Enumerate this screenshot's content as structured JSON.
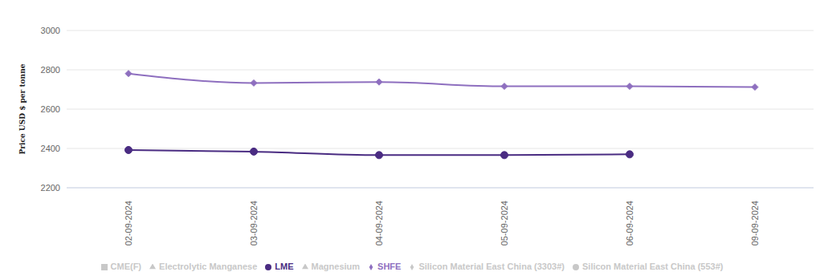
{
  "chart_data": {
    "type": "line",
    "y_label": "Price USD $ per tonne",
    "categories": [
      "02-09-2024",
      "03-09-2024",
      "04-09-2024",
      "05-09-2024",
      "06-09-2024",
      "09-09-2024"
    ],
    "series": [
      {
        "name": "LME",
        "color": "#4a2c82",
        "marker": "circle",
        "values": [
          2392,
          2384,
          2366,
          2366,
          2370,
          null
        ]
      },
      {
        "name": "SHFE",
        "color": "#8e6fbf",
        "marker": "diamond",
        "values": [
          2781,
          2733,
          2738,
          2716,
          2716,
          2712
        ]
      },
      {
        "name": "CME(F)",
        "color": "#c8c8c8",
        "marker": "square",
        "values": [
          null,
          null,
          null,
          null,
          null,
          null
        ]
      },
      {
        "name": "Electrolytic Manganese",
        "color": "#c8c8c8",
        "marker": "triangle",
        "values": [
          null,
          null,
          null,
          null,
          null,
          null
        ]
      },
      {
        "name": "Magnesium",
        "color": "#c8c8c8",
        "marker": "triangle-down",
        "values": [
          null,
          null,
          null,
          null,
          null,
          null
        ]
      },
      {
        "name": "Silicon Material East China (553#)",
        "color": "#c8c8c8",
        "marker": "circle",
        "values": [
          null,
          null,
          null,
          null,
          null,
          null
        ]
      },
      {
        "name": "Silicon Material East China (3303#)",
        "color": "#c8c8c8",
        "marker": "diamond",
        "values": [
          null,
          null,
          null,
          null,
          null,
          null
        ]
      }
    ],
    "ylim": [
      2200,
      3000
    ],
    "yticks": [
      2200,
      2400,
      2600,
      2800,
      3000
    ],
    "grid": true,
    "legend": "bottom"
  }
}
